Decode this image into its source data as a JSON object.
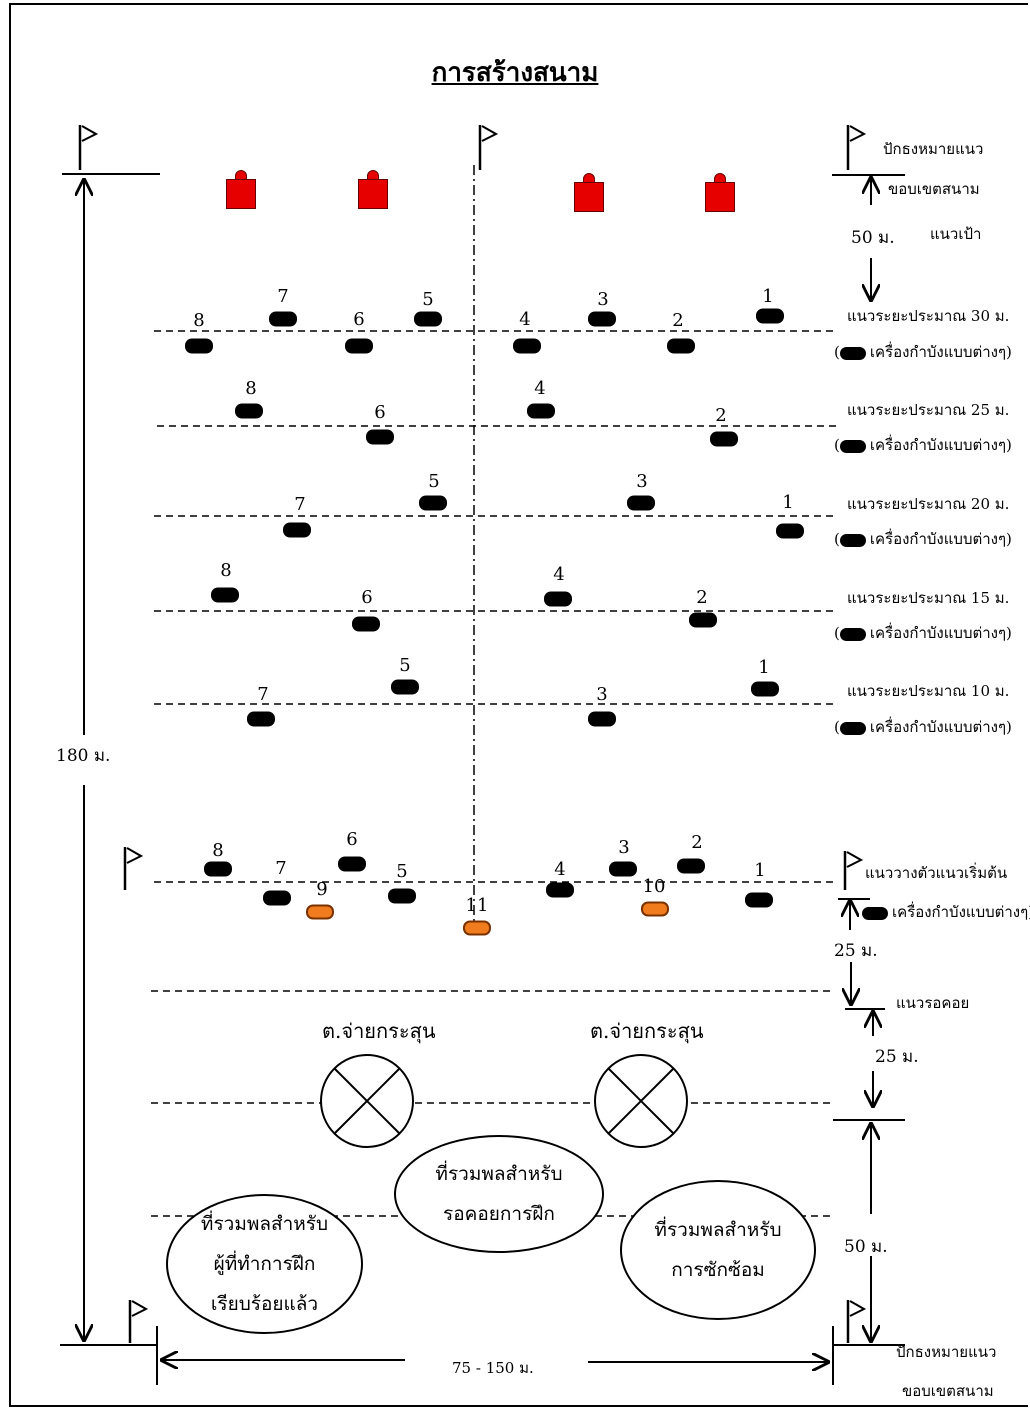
{
  "title": "การสร้างสนาม",
  "labels": {
    "flag_boundary_top_1": "ปักธงหมายแนว",
    "flag_boundary_top_2": "ขอบเขตสนาม",
    "target_line": "แนวเป้า",
    "dist_50_top": "50 ม.",
    "start_line": "แนววางตัวแนวเริ่มต้น",
    "dist_25_a": "25 ม.",
    "waiting_line": "แนวรอคอย",
    "dist_25_b": "25 ม.",
    "dist_50_bottom": "50 ม.",
    "height_total": "180 ม.",
    "width_total": "75 - 150 ม.",
    "flag_boundary_bottom_1": "ปักธงหมายแนว",
    "flag_boundary_bottom_2": "ขอบเขตสนาม",
    "ammo_left": "ต.จ่ายกระสุน",
    "ammo_right": "ต.จ่ายกระสุน",
    "zone_done": [
      "ที่รวมพลสำหรับ",
      "ผู้ที่ทำการฝึก",
      "เรียบร้อยแล้ว"
    ],
    "zone_wait": [
      "ที่รวมพลสำหรับ",
      "รอคอยการฝึก"
    ],
    "zone_rehearse": [
      "ที่รวมพลสำหรับ",
      "การซักซ้อม"
    ],
    "obstacle_legend": "เครื่องกำบังแบบต่างๆ)",
    "legend_open": "("
  },
  "rows": [
    {
      "label": "แนวระยะประมาณ 30 ม.",
      "legend": "เครื่องกำบังแบบต่างๆ)",
      "obstacles": [
        "8",
        "7",
        "6",
        "5",
        "4",
        "3",
        "2",
        "1"
      ]
    },
    {
      "label": "แนวระยะประมาณ 25 ม.",
      "legend": "เครื่องกำบังแบบต่างๆ)",
      "obstacles": [
        "8",
        "6",
        "4",
        "2"
      ]
    },
    {
      "label": "แนวระยะประมาณ 20 ม.",
      "legend": "เครื่องกำบังแบบต่างๆ)",
      "obstacles": [
        "7",
        "5",
        "3",
        "1"
      ]
    },
    {
      "label": "แนวระยะประมาณ 15 ม.",
      "legend": "เครื่องกำบังแบบต่างๆ)",
      "obstacles": [
        "8",
        "6",
        "4",
        "2"
      ]
    },
    {
      "label": "แนวระยะประมาณ 10 ม.",
      "legend": "เครื่องกำบังแบบต่างๆ)",
      "obstacles": [
        "7",
        "5",
        "3",
        "1"
      ]
    }
  ],
  "start_obstacles": [
    "8",
    "7",
    "6",
    "5",
    "4",
    "3",
    "2",
    "1"
  ],
  "start_extra": [
    "9",
    "10",
    "11"
  ],
  "colors": {
    "target": "#e60000",
    "extra_obstacle": "#f07c1e"
  }
}
